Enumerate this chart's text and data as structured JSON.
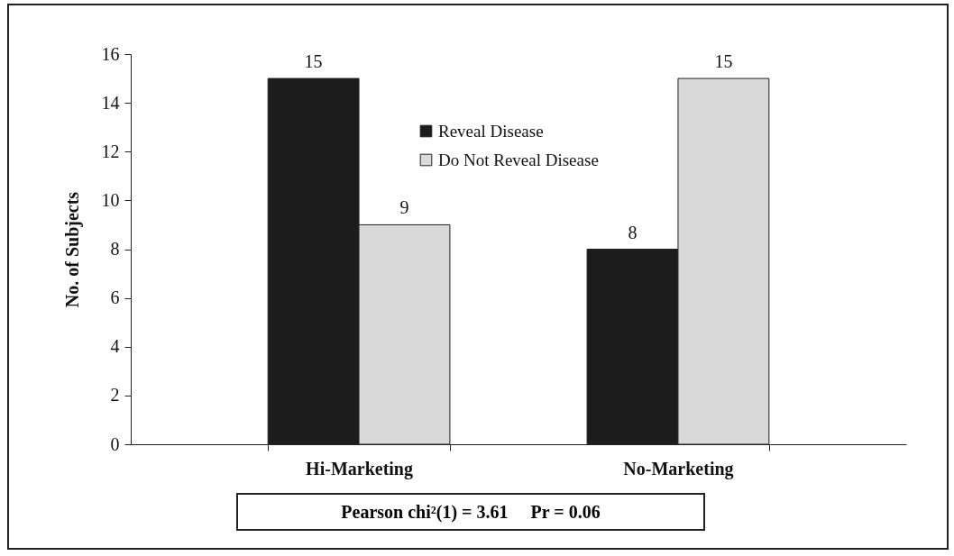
{
  "chart_data": {
    "type": "bar",
    "ylabel": "No. of Subjects",
    "categories": [
      "Hi-Marketing",
      "No-Marketing"
    ],
    "series": [
      {
        "name": "Reveal Disease",
        "color": "#1c1c1c",
        "values": [
          15,
          8
        ]
      },
      {
        "name": "Do Not Reveal Disease",
        "color": "#d9d9d9",
        "values": [
          9,
          15
        ]
      }
    ],
    "ylim": [
      0,
      16
    ],
    "yticks": [
      0,
      2,
      4,
      6,
      8,
      10,
      12,
      14,
      16
    ],
    "grid": false,
    "legend": "top",
    "data_labels": true,
    "annotations": [
      "Pearson chi²(1) = 3.61     Pr = 0.06"
    ]
  }
}
